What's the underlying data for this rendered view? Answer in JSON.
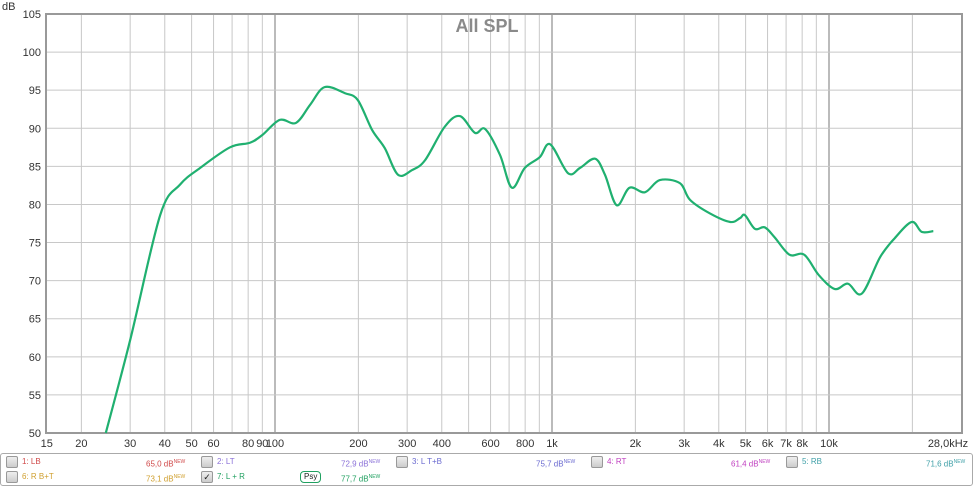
{
  "chart_data": {
    "type": "line",
    "title": "All SPL",
    "ylabel": "dB",
    "xlabel": "",
    "x_scale": "log",
    "xlim": [
      15,
      28000
    ],
    "ylim": [
      50,
      105
    ],
    "grid": true,
    "x_tick_labels": [
      {
        "v": 15,
        "t": "15"
      },
      {
        "v": 20,
        "t": "20"
      },
      {
        "v": 30,
        "t": "30"
      },
      {
        "v": 40,
        "t": "40"
      },
      {
        "v": 50,
        "t": "50"
      },
      {
        "v": 60,
        "t": "60"
      },
      {
        "v": 80,
        "t": "80"
      },
      {
        "v": 90,
        "t": "90"
      },
      {
        "v": 100,
        "t": "100"
      },
      {
        "v": 200,
        "t": "200"
      },
      {
        "v": 300,
        "t": "300"
      },
      {
        "v": 400,
        "t": "400"
      },
      {
        "v": 600,
        "t": "600"
      },
      {
        "v": 800,
        "t": "800"
      },
      {
        "v": 1000,
        "t": "1k"
      },
      {
        "v": 2000,
        "t": "2k"
      },
      {
        "v": 3000,
        "t": "3k"
      },
      {
        "v": 4000,
        "t": "4k"
      },
      {
        "v": 5000,
        "t": "5k"
      },
      {
        "v": 6000,
        "t": "6k"
      },
      {
        "v": 7000,
        "t": "7k"
      },
      {
        "v": 8000,
        "t": "8k"
      },
      {
        "v": 10000,
        "t": "10k"
      },
      {
        "v": 28000,
        "t": "28,0kHz"
      }
    ],
    "y_ticks": [
      50,
      55,
      60,
      65,
      70,
      75,
      80,
      85,
      90,
      95,
      100,
      105
    ],
    "series": [
      {
        "name": "7: L + R",
        "color": "#20b070",
        "x": [
          24.5,
          30,
          38.5,
          45.4,
          53.7,
          68.8,
          81.2,
          89.9,
          104,
          119,
          134,
          151,
          179,
          199,
          224,
          249,
          278,
          312,
          348,
          410,
          465,
          527,
          574,
          649,
          716,
          798,
          903,
          985,
          1143,
          1263,
          1430,
          1553,
          1712,
          1905,
          2164,
          2450,
          2895,
          3150,
          3725,
          4400,
          4770,
          4970,
          5400,
          5860,
          6360,
          7200,
          8140,
          9200,
          10500,
          11700,
          13140,
          15300,
          17300,
          19900,
          21600,
          23800
        ],
        "y": [
          50,
          62.2,
          78.6,
          82.6,
          84.8,
          87.5,
          88.1,
          89.1,
          91.1,
          90.7,
          93.1,
          95.4,
          94.6,
          93.7,
          89.8,
          87.4,
          83.9,
          84.5,
          85.8,
          90.2,
          91.6,
          89.4,
          89.9,
          86.5,
          82.2,
          84.8,
          86.2,
          87.9,
          84.1,
          84.8,
          86.0,
          83.9,
          79.9,
          82.2,
          81.6,
          83.2,
          82.8,
          80.6,
          78.8,
          77.7,
          78.2,
          78.6,
          76.8,
          77.0,
          75.7,
          73.4,
          73.4,
          70.7,
          68.9,
          69.6,
          68.3,
          73.1,
          75.6,
          77.7,
          76.4,
          76.5
        ]
      }
    ]
  },
  "legend": {
    "items": [
      {
        "label": "1: LB",
        "value": "65,0 dB",
        "sup": "NEW",
        "color": "#d04a4a",
        "checked": false
      },
      {
        "label": "2: LT",
        "value": "72,9 dB",
        "sup": "NEW",
        "color": "#8a70d8",
        "checked": false
      },
      {
        "label": "3: L T+B",
        "value": "75,7 dB",
        "sup": "NEW",
        "color": "#6a6ad0",
        "checked": false
      },
      {
        "label": "4: RT",
        "value": "61,4 dB",
        "sup": "NEW",
        "color": "#c040c0",
        "checked": false
      },
      {
        "label": "5: RB",
        "value": "71,6 dB",
        "sup": "NEW",
        "color": "#40a0a8",
        "checked": false
      },
      {
        "label": "6: R B+T",
        "value": "73,1 dB",
        "sup": "NEW",
        "color": "#d0a030",
        "checked": false
      },
      {
        "label": "7: L + R",
        "value": "77,7 dB",
        "sup": "NEW",
        "color": "#20a060",
        "checked": true,
        "badge": "Psy"
      }
    ]
  }
}
